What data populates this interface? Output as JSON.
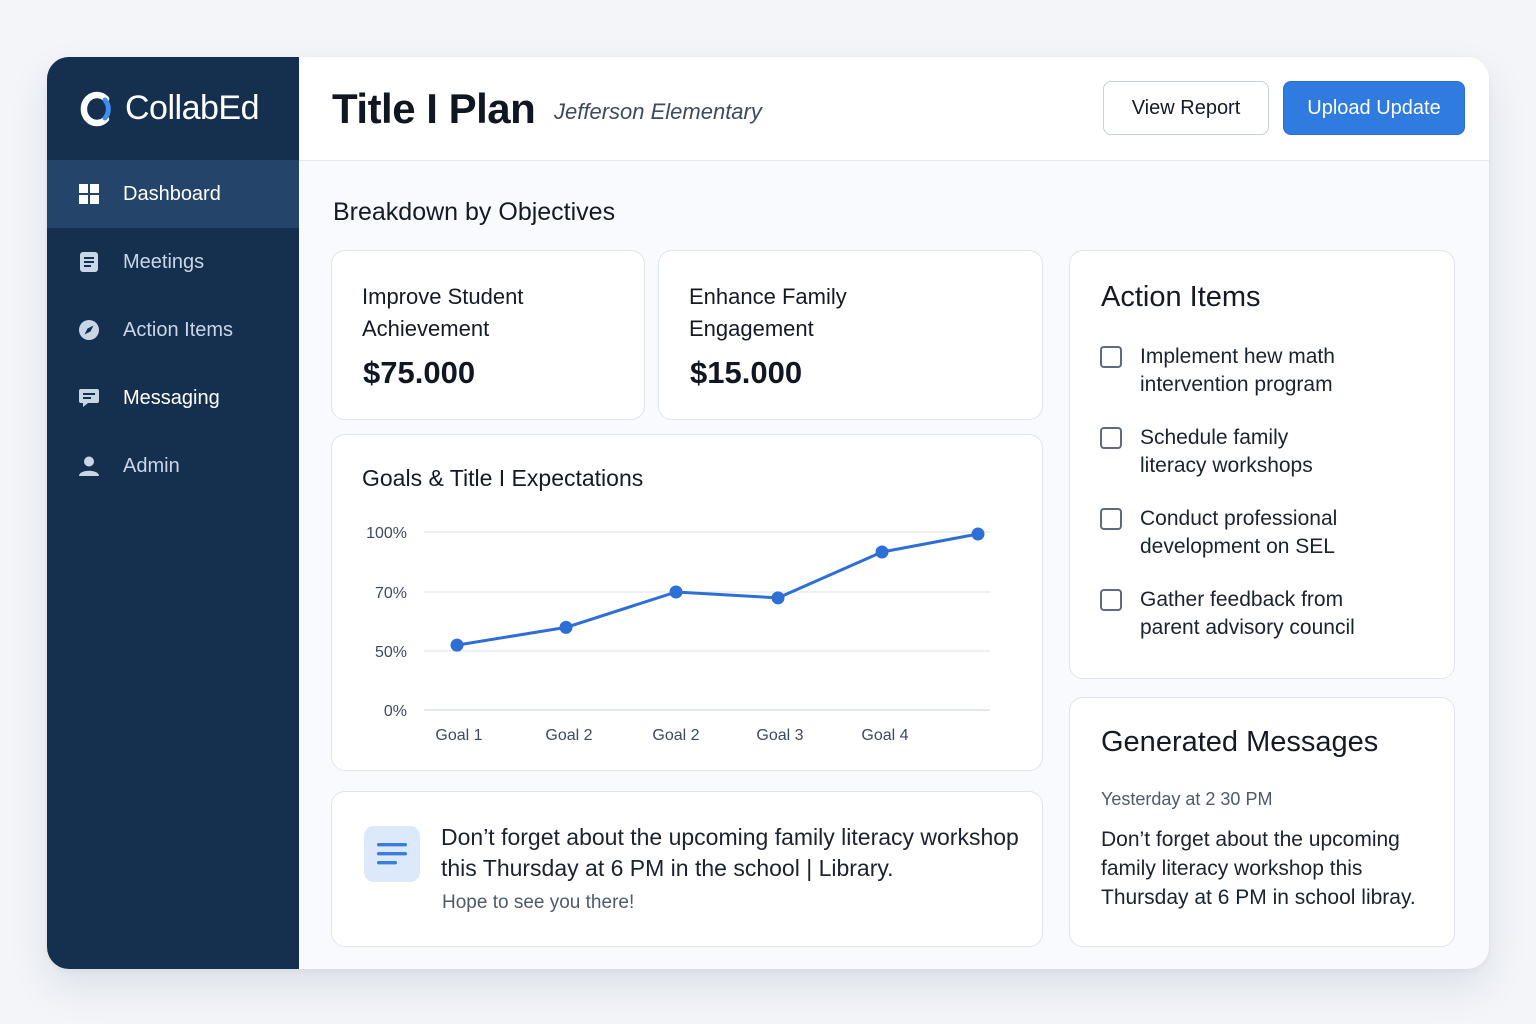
{
  "brand": {
    "name": "CollabEd",
    "logo_icon": "c-logo-icon"
  },
  "sidebar": {
    "items": [
      {
        "label": "Dashboard",
        "icon": "grid-icon",
        "active": true
      },
      {
        "label": "Meetings",
        "icon": "document-icon",
        "active": false
      },
      {
        "label": "Action Items",
        "icon": "compass-icon",
        "active": false
      },
      {
        "label": "Messaging",
        "icon": "chat-icon",
        "active": false
      },
      {
        "label": "Admin",
        "icon": "user-icon",
        "active": false
      }
    ]
  },
  "header": {
    "title": "Title I Plan",
    "subtitle": "Jefferson Elementary",
    "view_report_label": "View Report",
    "upload_update_label": "Upload Update"
  },
  "objectives": {
    "section_title": "Breakdown by Objectives",
    "cards": [
      {
        "title_line1": "Improve Student",
        "title_line2": "Achievement",
        "value": "$75.000"
      },
      {
        "title_line1": "Enhance Family",
        "title_line2": "Engagement",
        "value": "$15.000"
      }
    ]
  },
  "chart": {
    "title": "Goals & Title I Expectations"
  },
  "chart_data": {
    "type": "line",
    "title": "Goals & Title I Expectations",
    "categories": [
      "Goal 1",
      "Goal 2",
      "Goal 2",
      "Goal 3",
      "Goal 4",
      ""
    ],
    "x": [
      0,
      1,
      2,
      3,
      4,
      5
    ],
    "values": [
      52,
      58,
      70,
      68,
      90,
      99
    ],
    "y_ticks": [
      {
        "value": 0,
        "label": "0%"
      },
      {
        "value": 50,
        "label": "50%"
      },
      {
        "value": 70,
        "label": "70%"
      },
      {
        "value": 100,
        "label": "100%"
      }
    ],
    "ylim": [
      0,
      100
    ],
    "grid": true,
    "line_color": "#2d6fd6"
  },
  "message": {
    "text": "Don’t forget about the upcoming family literacy workshop this Thursday at 6 PM in the school | Library.",
    "sub": "Hope to see you there!",
    "icon": "lines-icon"
  },
  "action_items": {
    "title": "Action Items",
    "items": [
      {
        "line1": "Implement hew math",
        "line2": "intervention program"
      },
      {
        "line1": "Schedule family",
        "line2": "literacy workshops"
      },
      {
        "line1": "Conduct professional",
        "line2": "development on SEL"
      },
      {
        "line1": "Gather feedback from",
        "line2": "parent advisory council"
      }
    ]
  },
  "generated_messages": {
    "title": "Generated Messages",
    "time": "Yesterday at 2 30 PM",
    "text": "Don’t forget about the upcoming family literacy workshop this Thursday at 6 PM in school libray."
  },
  "colors": {
    "sidebar_bg": "#15304f",
    "sidebar_active": "#25446a",
    "accent": "#2f7be0"
  }
}
